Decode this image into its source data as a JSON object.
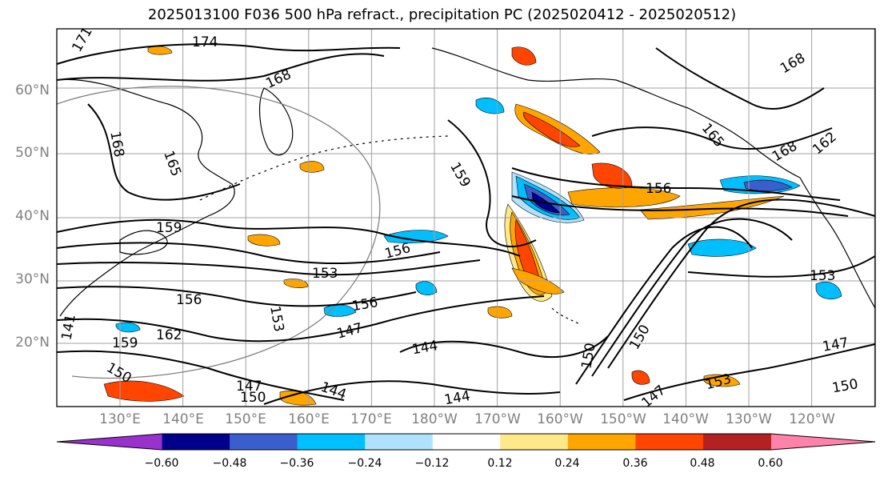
{
  "title": "2025013100 F036 500 hPa refract., precipitation PC (2025020412 - 2025020512)",
  "lat_labels": [
    "60°N",
    "50°N",
    "40°N",
    "30°N",
    "20°N"
  ],
  "lon_labels": [
    "130°E",
    "140°E",
    "150°E",
    "160°E",
    "170°E",
    "180°W",
    "170°W",
    "160°W",
    "150°W",
    "140°W",
    "130°W",
    "120°W"
  ],
  "contour_labels": [
    "174",
    "171",
    "168",
    "165",
    "162",
    "159",
    "156",
    "153",
    "150",
    "147",
    "144",
    "141",
    "165",
    "162",
    "168",
    "156",
    "153",
    "147",
    "150",
    "153",
    "147",
    "144"
  ],
  "colorbar": {
    "labels": [
      "−0.60",
      "−0.48",
      "−0.36",
      "−0.24",
      "−0.12",
      "0.12",
      "0.24",
      "0.36",
      "0.48",
      "0.60"
    ],
    "colors": [
      "#9932cc",
      "#00008b",
      "#3a5fcd",
      "#00bfff",
      "#b0e2ff",
      "#ffffff",
      "#ffe88a",
      "#ffa500",
      "#ff4500",
      "#b22222",
      "#ff82ab"
    ]
  },
  "colors": {
    "neg_strong": "#00008b",
    "neg_mid": "#3a5fcd",
    "neg_light": "#00bfff",
    "neg_pale": "#b0e2ff",
    "pos_pale": "#ffe88a",
    "pos_light": "#ffa500",
    "pos_mid": "#ff4500",
    "pos_strong": "#b22222"
  }
}
